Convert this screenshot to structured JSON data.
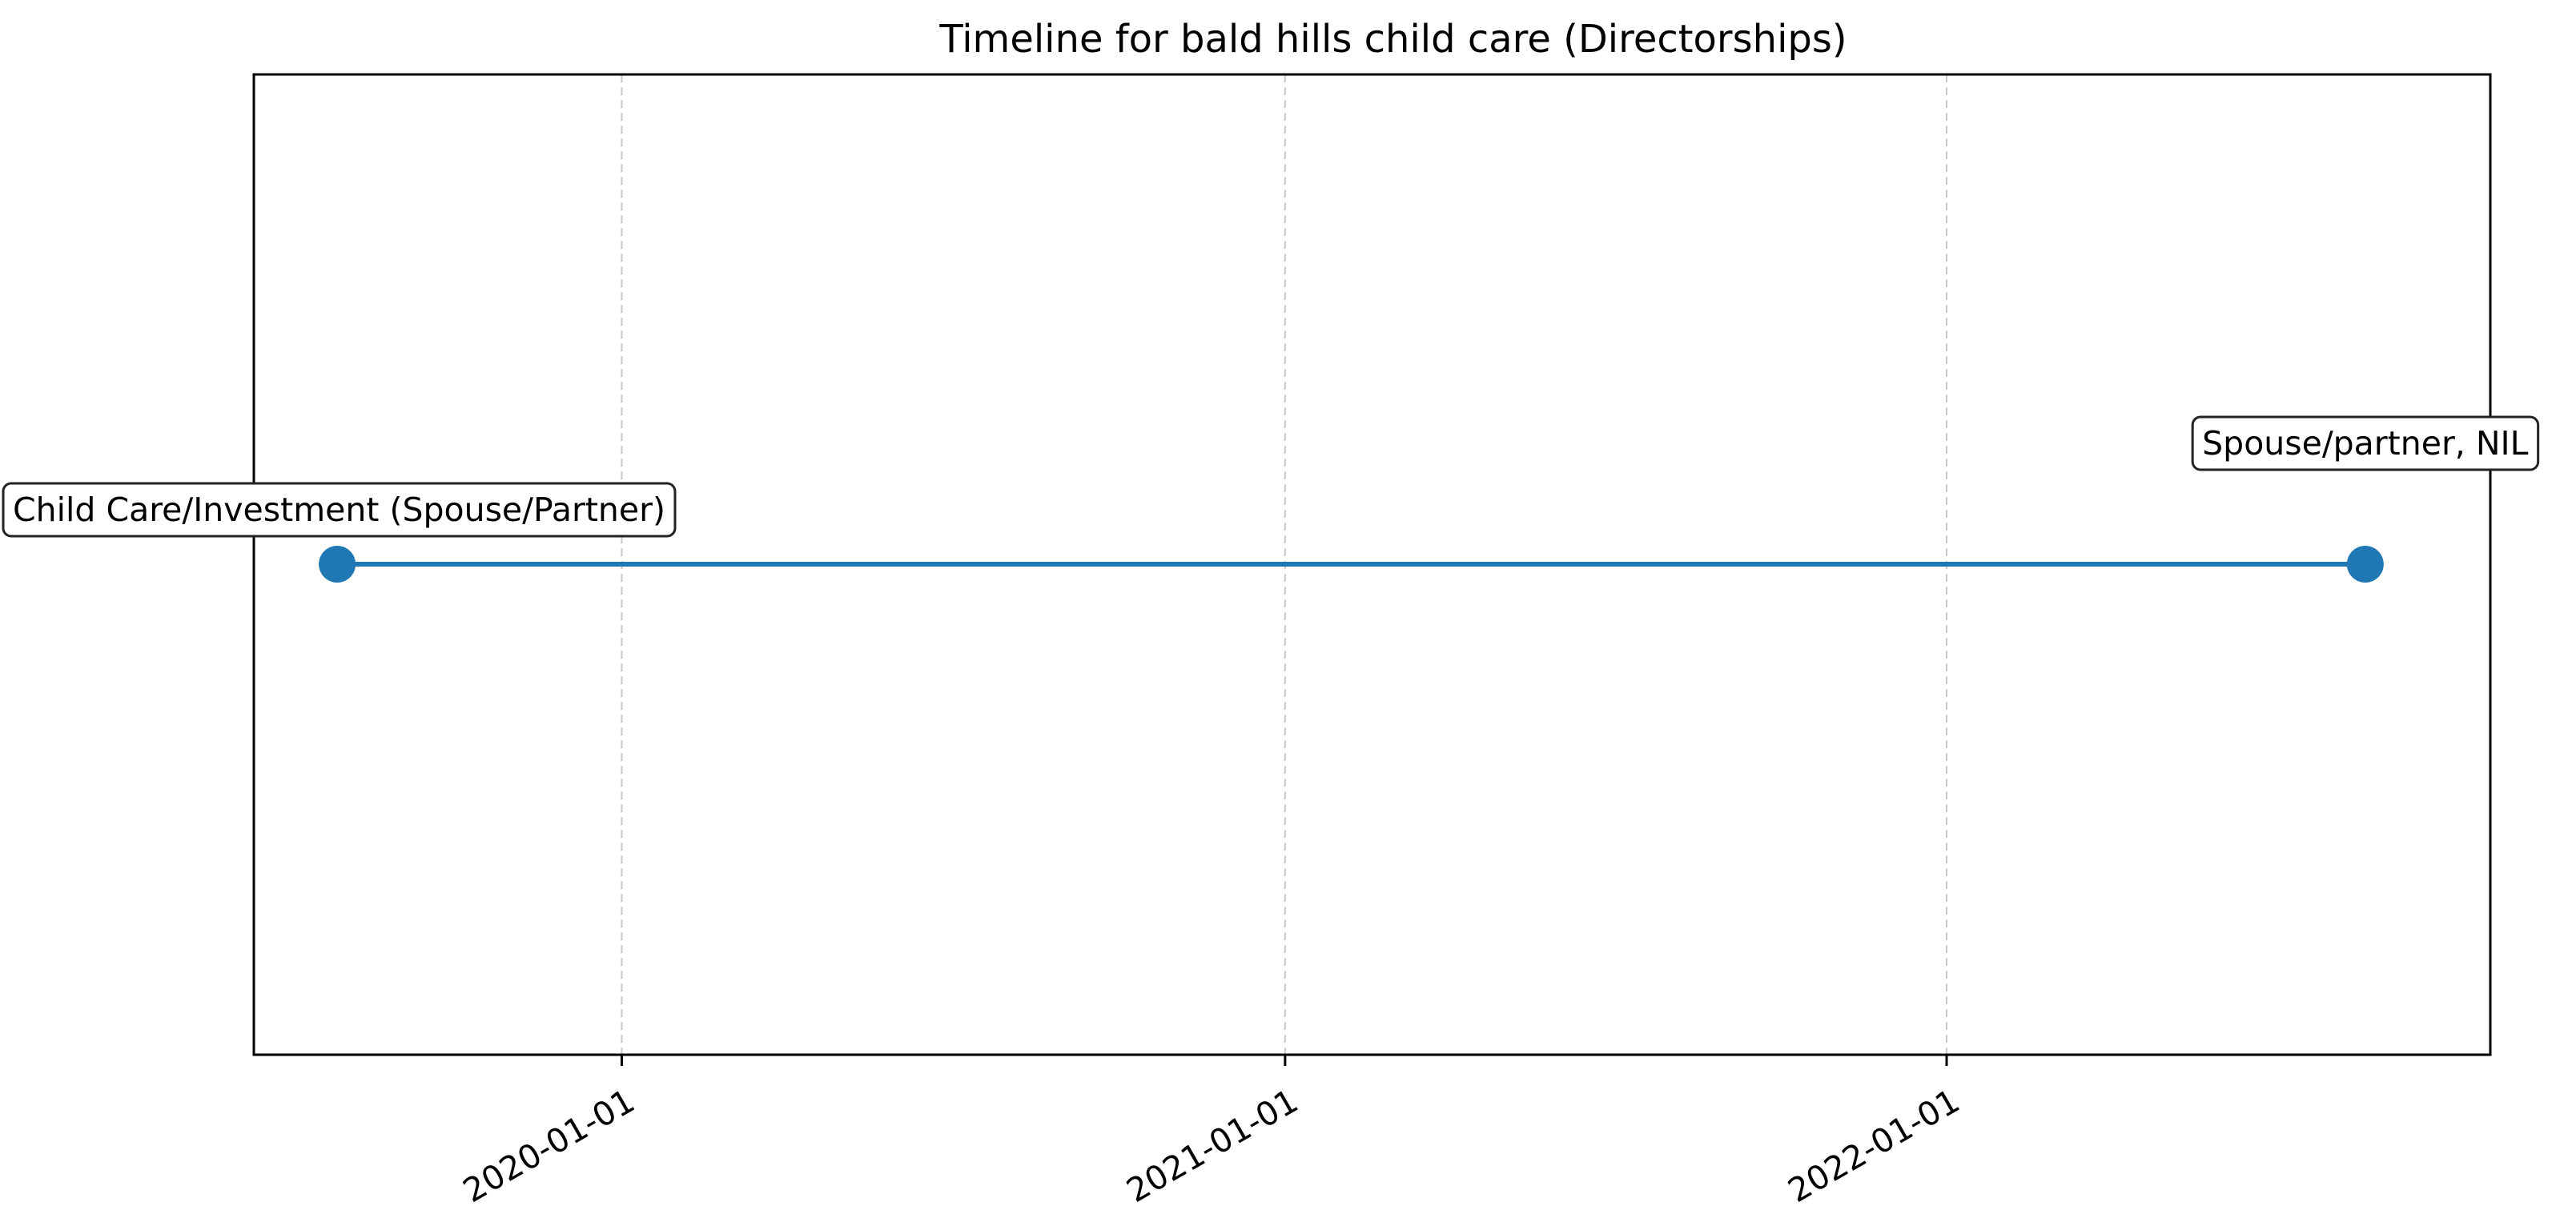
{
  "chart_data": {
    "type": "line",
    "title": "Timeline for bald hills child care (Directorships)",
    "xlabel": "",
    "ylabel": "",
    "x_axis_type": "date",
    "xlim": [
      "2019-06-12",
      "2022-10-28"
    ],
    "xticks": [
      "2020-01-01",
      "2021-01-01",
      "2022-01-01"
    ],
    "grid": "vertical dashed",
    "legend": "none",
    "series": [
      {
        "color": "#1f77b4",
        "points": [
          {
            "x": "2019-07-28",
            "label": "Child Care/Investment (Spouse/Partner)"
          },
          {
            "x": "2022-08-20",
            "label": "Spouse/partner, NIL"
          }
        ]
      }
    ]
  }
}
